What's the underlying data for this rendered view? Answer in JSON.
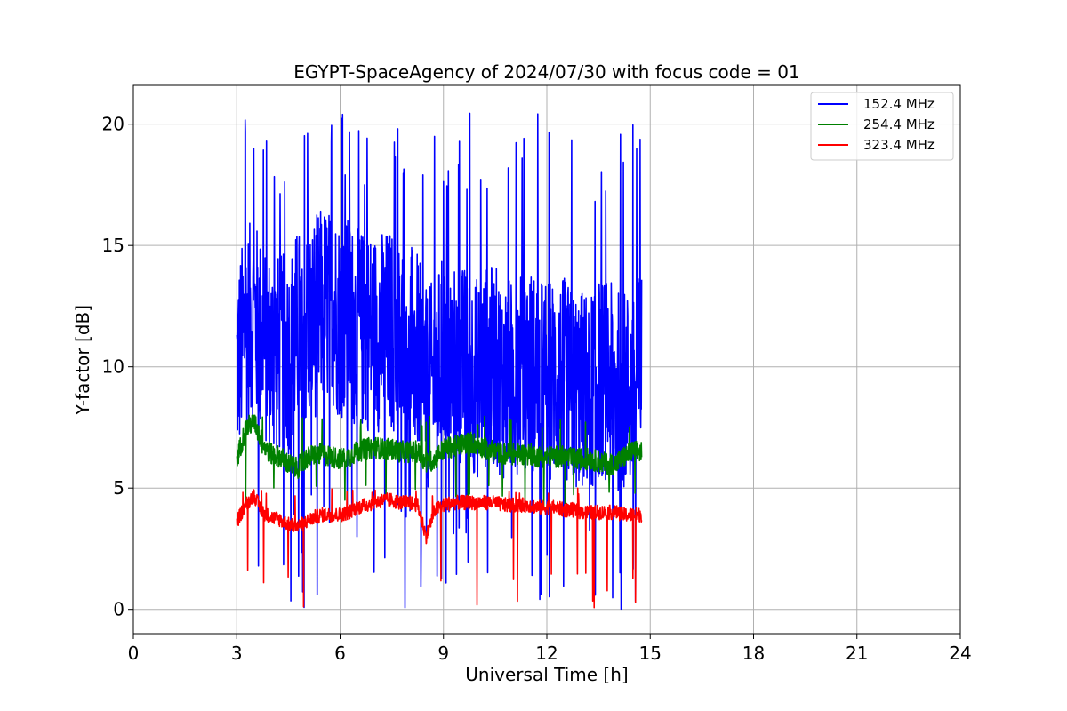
{
  "chart_data": {
    "type": "line",
    "title": "EGYPT-SpaceAgency of 2024/07/30 with focus code = 01",
    "xlabel": "Universal Time [h]",
    "ylabel": "Y-factor [dB]",
    "xlim": [
      0,
      24
    ],
    "ylim": [
      -1,
      21.6
    ],
    "xticks": [
      0,
      3,
      6,
      9,
      12,
      15,
      18,
      21,
      24
    ],
    "xtick_labels": [
      "0",
      "3",
      "6",
      "9",
      "12",
      "15",
      "18",
      "21",
      "24"
    ],
    "yticks": [
      0,
      5,
      10,
      15,
      20
    ],
    "ytick_labels": [
      "0",
      "5",
      "10",
      "15",
      "20"
    ],
    "grid": true,
    "legend_position": "top-right",
    "series": [
      {
        "name": "152.4 MHz",
        "color": "#0000ff",
        "x": [
          3.0,
          3.25,
          3.5,
          3.75,
          4.0,
          4.25,
          4.5,
          4.75,
          5.0,
          5.25,
          5.5,
          5.75,
          6.0,
          6.25,
          6.5,
          6.75,
          7.0,
          7.25,
          7.5,
          7.75,
          8.0,
          8.25,
          8.5,
          8.75,
          9.0,
          9.25,
          9.5,
          9.75,
          10.0,
          10.25,
          10.5,
          10.75,
          11.0,
          11.25,
          11.5,
          11.75,
          12.0,
          12.25,
          12.5,
          12.75,
          13.0,
          13.25,
          13.5,
          13.75,
          14.0,
          14.25,
          14.5,
          14.75
        ],
        "y": [
          10.0,
          11.5,
          12.0,
          11.0,
          10.5,
          10.5,
          10.5,
          11.5,
          11.5,
          12.0,
          12.5,
          12.5,
          12.0,
          12.0,
          11.5,
          11.5,
          11.5,
          11.5,
          11.5,
          11.0,
          11.0,
          10.5,
          9.0,
          9.5,
          10.5,
          10.0,
          10.0,
          10.0,
          9.5,
          10.0,
          10.0,
          9.5,
          9.5,
          10.0,
          10.0,
          9.5,
          9.5,
          9.5,
          9.5,
          9.0,
          9.0,
          9.0,
          9.5,
          9.5,
          9.0,
          9.0,
          9.0,
          10.0
        ],
        "max": 20.6,
        "min": 0.0
      },
      {
        "name": "254.4 MHz",
        "color": "#008000",
        "x": [
          3.0,
          3.25,
          3.5,
          3.75,
          4.0,
          4.25,
          4.5,
          4.75,
          5.0,
          5.25,
          5.5,
          5.75,
          6.0,
          6.25,
          6.5,
          6.75,
          7.0,
          7.25,
          7.5,
          7.75,
          8.0,
          8.25,
          8.5,
          8.75,
          9.0,
          9.25,
          9.5,
          9.75,
          10.0,
          10.25,
          10.5,
          10.75,
          11.0,
          11.25,
          11.5,
          11.75,
          12.0,
          12.25,
          12.5,
          12.75,
          13.0,
          13.25,
          13.5,
          13.75,
          14.0,
          14.25,
          14.5,
          14.75
        ],
        "y": [
          6.2,
          7.4,
          7.8,
          6.8,
          6.4,
          6.3,
          6.0,
          5.8,
          6.2,
          6.4,
          6.4,
          6.3,
          6.2,
          6.3,
          6.5,
          6.6,
          6.7,
          6.6,
          6.6,
          6.5,
          6.5,
          6.5,
          6.0,
          6.2,
          6.6,
          6.7,
          6.8,
          6.9,
          6.8,
          6.6,
          6.5,
          6.4,
          6.4,
          6.4,
          6.4,
          6.3,
          6.3,
          6.3,
          6.3,
          6.2,
          6.2,
          6.2,
          6.1,
          6.0,
          6.0,
          6.3,
          6.5,
          6.5
        ],
        "max": 8.0,
        "min": 4.2
      },
      {
        "name": "323.4 MHz",
        "color": "#ff0000",
        "x": [
          3.0,
          3.25,
          3.5,
          3.75,
          4.0,
          4.25,
          4.5,
          4.75,
          5.0,
          5.25,
          5.5,
          5.75,
          6.0,
          6.25,
          6.5,
          6.75,
          7.0,
          7.25,
          7.5,
          7.75,
          8.0,
          8.25,
          8.5,
          8.75,
          9.0,
          9.25,
          9.5,
          9.75,
          10.0,
          10.25,
          10.5,
          10.75,
          11.0,
          11.25,
          11.5,
          11.75,
          12.0,
          12.25,
          12.5,
          12.75,
          13.0,
          13.25,
          13.5,
          13.75,
          14.0,
          14.25,
          14.5,
          14.75
        ],
        "y": [
          3.6,
          4.3,
          4.7,
          4.0,
          3.8,
          3.7,
          3.5,
          3.4,
          3.6,
          3.8,
          3.9,
          3.9,
          3.9,
          4.0,
          4.2,
          4.3,
          4.4,
          4.5,
          4.5,
          4.4,
          4.4,
          4.3,
          3.0,
          4.1,
          4.3,
          4.4,
          4.4,
          4.4,
          4.4,
          4.4,
          4.4,
          4.3,
          4.3,
          4.3,
          4.3,
          4.2,
          4.2,
          4.2,
          4.1,
          4.1,
          4.0,
          4.0,
          4.0,
          4.0,
          4.0,
          3.9,
          3.9,
          3.9
        ],
        "max": 5.0,
        "min": 0.0
      }
    ]
  }
}
